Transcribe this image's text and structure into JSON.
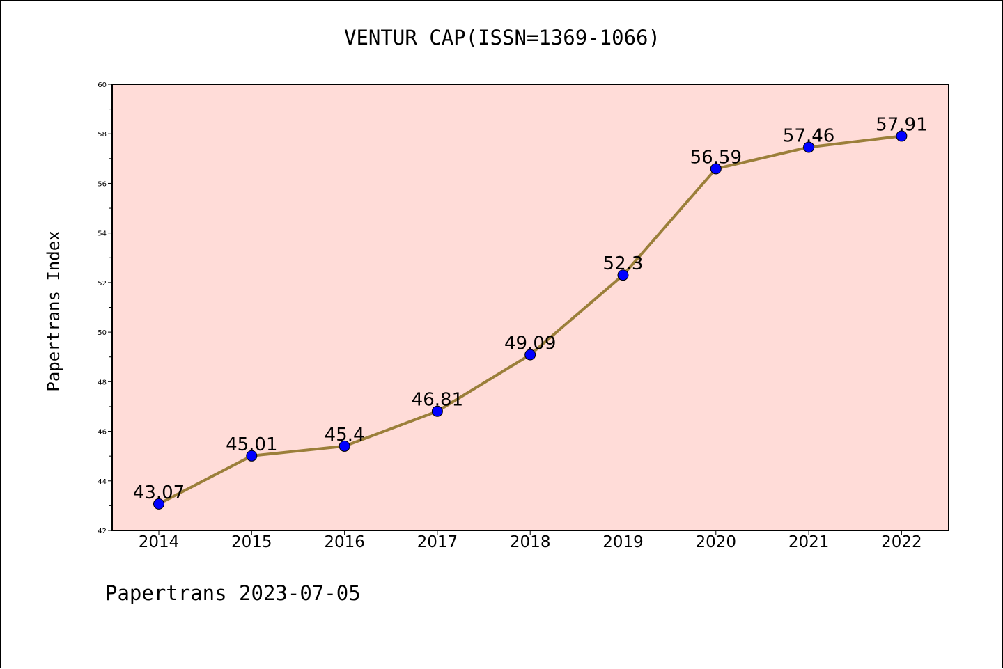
{
  "chart_data": {
    "type": "line",
    "title": "VENTUR CAP(ISSN=1369-1066)",
    "xlabel": "",
    "ylabel": "Papertrans Index",
    "footer": "Papertrans 2023-07-05",
    "categories": [
      "2014",
      "2015",
      "2016",
      "2017",
      "2018",
      "2019",
      "2020",
      "2021",
      "2022"
    ],
    "values": [
      43.07,
      45.01,
      45.4,
      46.81,
      49.09,
      52.3,
      56.59,
      57.46,
      57.91
    ],
    "data_labels": [
      "43.07",
      "45.01",
      "45.4",
      "46.81",
      "49.09",
      "52.3",
      "56.59",
      "57.46",
      "57.91"
    ],
    "ylim": [
      42,
      60
    ],
    "yticks": [
      "42",
      "44",
      "46",
      "48",
      "50",
      "52",
      "54",
      "56",
      "58",
      "60"
    ],
    "grid": false,
    "colors": {
      "background": "#ffdcd8",
      "line": "#9b7f3a",
      "marker": "#0000ff"
    }
  }
}
